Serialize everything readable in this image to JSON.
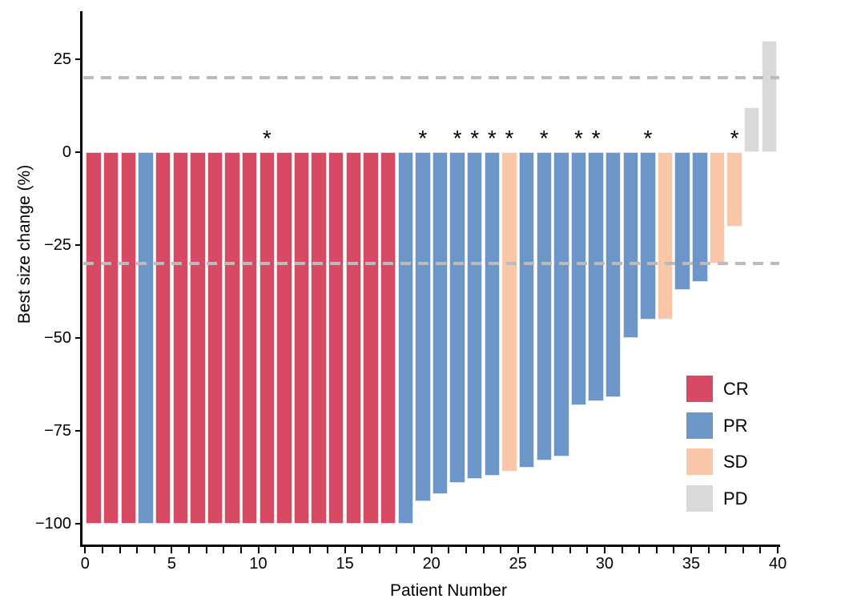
{
  "figure": {
    "ylabel": "Best size change (%)",
    "xlabel": "Patient Number"
  },
  "chart_data": {
    "type": "bar",
    "subtype": "waterfall",
    "title": "",
    "xlabel": "Patient Number",
    "ylabel": "Best size change (%)",
    "xlim": [
      0,
      40.2
    ],
    "ylim": [
      -106,
      37
    ],
    "grid": false,
    "x_major_ticks": [
      0,
      5,
      10,
      15,
      20,
      25,
      30,
      35,
      40
    ],
    "x_minor_tick_every": 1,
    "y_ticks": [
      {
        "v": 25,
        "label": "25"
      },
      {
        "v": 0,
        "label": "0"
      },
      {
        "v": -25,
        "label": "−25"
      },
      {
        "v": -50,
        "label": "−50"
      },
      {
        "v": -75,
        "label": "−75"
      },
      {
        "v": -100,
        "label": "−100"
      }
    ],
    "threshold_lines": {
      "values": [
        20,
        -30
      ],
      "color": "#bbbbbb",
      "style": "dashed"
    },
    "annotation_marker": "*",
    "legend": {
      "position": "inside-right",
      "entries": [
        {
          "label": "CR",
          "color": "#d84a63"
        },
        {
          "label": "PR",
          "color": "#6c95c8"
        },
        {
          "label": "SD",
          "color": "#f9c7a8"
        },
        {
          "label": "PD",
          "color": "#d9d9d9"
        }
      ]
    },
    "patients": [
      {
        "n": 1,
        "value": -100,
        "response": "CR",
        "star": false
      },
      {
        "n": 2,
        "value": -100,
        "response": "CR",
        "star": false
      },
      {
        "n": 3,
        "value": -100,
        "response": "CR",
        "star": false
      },
      {
        "n": 4,
        "value": -100,
        "response": "PR",
        "star": false
      },
      {
        "n": 5,
        "value": -100,
        "response": "CR",
        "star": false
      },
      {
        "n": 6,
        "value": -100,
        "response": "CR",
        "star": false
      },
      {
        "n": 7,
        "value": -100,
        "response": "CR",
        "star": false
      },
      {
        "n": 8,
        "value": -100,
        "response": "CR",
        "star": false
      },
      {
        "n": 9,
        "value": -100,
        "response": "CR",
        "star": false
      },
      {
        "n": 10,
        "value": -100,
        "response": "CR",
        "star": false
      },
      {
        "n": 11,
        "value": -100,
        "response": "CR",
        "star": true
      },
      {
        "n": 12,
        "value": -100,
        "response": "CR",
        "star": false
      },
      {
        "n": 13,
        "value": -100,
        "response": "CR",
        "star": false
      },
      {
        "n": 14,
        "value": -100,
        "response": "CR",
        "star": false
      },
      {
        "n": 15,
        "value": -100,
        "response": "CR",
        "star": false
      },
      {
        "n": 16,
        "value": -100,
        "response": "CR",
        "star": false
      },
      {
        "n": 17,
        "value": -100,
        "response": "CR",
        "star": false
      },
      {
        "n": 18,
        "value": -100,
        "response": "CR",
        "star": false
      },
      {
        "n": 19,
        "value": -100,
        "response": "PR",
        "star": false
      },
      {
        "n": 20,
        "value": -94,
        "response": "PR",
        "star": true
      },
      {
        "n": 21,
        "value": -92,
        "response": "PR",
        "star": false
      },
      {
        "n": 22,
        "value": -89,
        "response": "PR",
        "star": true
      },
      {
        "n": 23,
        "value": -88,
        "response": "PR",
        "star": true
      },
      {
        "n": 24,
        "value": -87,
        "response": "PR",
        "star": true
      },
      {
        "n": 25,
        "value": -86,
        "response": "SD",
        "star": true
      },
      {
        "n": 26,
        "value": -85,
        "response": "PR",
        "star": false
      },
      {
        "n": 27,
        "value": -83,
        "response": "PR",
        "star": true
      },
      {
        "n": 28,
        "value": -82,
        "response": "PR",
        "star": false
      },
      {
        "n": 29,
        "value": -68,
        "response": "PR",
        "star": true
      },
      {
        "n": 30,
        "value": -67,
        "response": "PR",
        "star": true
      },
      {
        "n": 31,
        "value": -66,
        "response": "PR",
        "star": false
      },
      {
        "n": 32,
        "value": -50,
        "response": "PR",
        "star": false
      },
      {
        "n": 33,
        "value": -45,
        "response": "PR",
        "star": true
      },
      {
        "n": 34,
        "value": -45,
        "response": "SD",
        "star": false
      },
      {
        "n": 35,
        "value": -37,
        "response": "PR",
        "star": false
      },
      {
        "n": 36,
        "value": -35,
        "response": "PR",
        "star": false
      },
      {
        "n": 37,
        "value": -30,
        "response": "SD",
        "star": false
      },
      {
        "n": 38,
        "value": -20,
        "response": "SD",
        "star": true
      },
      {
        "n": 39,
        "value": 12,
        "response": "PD",
        "star": false
      },
      {
        "n": 40,
        "value": 30,
        "response": "PD",
        "star": false
      }
    ]
  }
}
